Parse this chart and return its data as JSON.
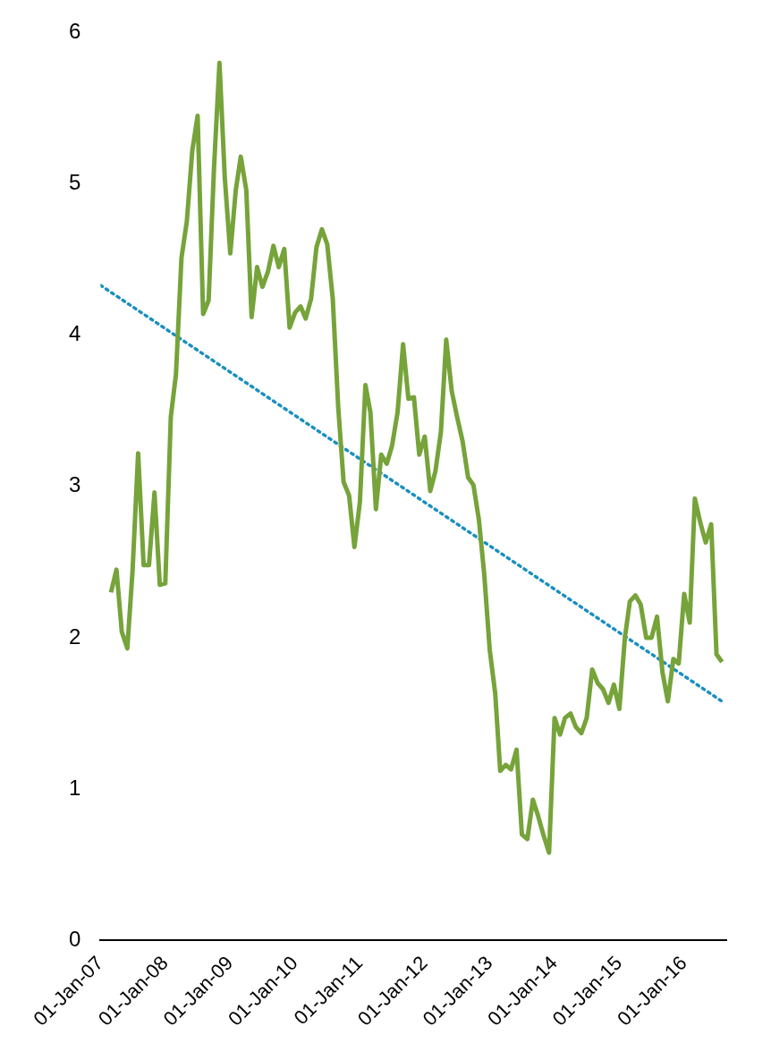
{
  "chart_data": {
    "type": "line",
    "legend": false,
    "grid": false,
    "marker": "none",
    "xlim": [
      "2007-01-01",
      "2016-08-25"
    ],
    "xticks": [
      {
        "value": "2007-01-01",
        "label": "01-Jan-07"
      },
      {
        "value": "2008-01-01",
        "label": "01-Jan-08"
      },
      {
        "value": "2009-01-01",
        "label": "01-Jan-09"
      },
      {
        "value": "2010-01-01",
        "label": "01-Jan-10"
      },
      {
        "value": "2011-01-01",
        "label": "01-Jan-11"
      },
      {
        "value": "2012-01-01",
        "label": "01-Jan-12"
      },
      {
        "value": "2013-01-01",
        "label": "01-Jan-13"
      },
      {
        "value": "2014-01-01",
        "label": "01-Jan-14"
      },
      {
        "value": "2015-01-01",
        "label": "01-Jan-15"
      },
      {
        "value": "2016-01-01",
        "label": "01-Jan-16"
      }
    ],
    "ylim": [
      0,
      6
    ],
    "yticks": [
      0,
      1,
      2,
      3,
      4,
      5,
      6
    ],
    "x": [
      "2007-03",
      "2007-04",
      "2007-05",
      "2007-06",
      "2007-07",
      "2007-08",
      "2007-09",
      "2007-10",
      "2007-11",
      "2007-12",
      "2008-01",
      "2008-02",
      "2008-03",
      "2008-04",
      "2008-05",
      "2008-06",
      "2008-07",
      "2008-08",
      "2008-09",
      "2008-10",
      "2008-11",
      "2008-12",
      "2009-01",
      "2009-02",
      "2009-03",
      "2009-04",
      "2009-05",
      "2009-06",
      "2009-07",
      "2009-08",
      "2009-09",
      "2009-10",
      "2009-11",
      "2009-12",
      "2010-01",
      "2010-02",
      "2010-03",
      "2010-04",
      "2010-05",
      "2010-06",
      "2010-07",
      "2010-08",
      "2010-09",
      "2010-10",
      "2010-11",
      "2010-12",
      "2011-01",
      "2011-02",
      "2011-03",
      "2011-04",
      "2011-05",
      "2011-06",
      "2011-07",
      "2011-08",
      "2011-09",
      "2011-10",
      "2011-11",
      "2011-12",
      "2012-01",
      "2012-02",
      "2012-03",
      "2012-04",
      "2012-05",
      "2012-06",
      "2012-07",
      "2012-08",
      "2012-09",
      "2012-10",
      "2012-11",
      "2012-12",
      "2013-01",
      "2013-02",
      "2013-03",
      "2013-04",
      "2013-05",
      "2013-06",
      "2013-07",
      "2013-08",
      "2013-09",
      "2013-10",
      "2013-11",
      "2013-12",
      "2014-01",
      "2014-02",
      "2014-03",
      "2014-04",
      "2014-05",
      "2014-06",
      "2014-07",
      "2014-08",
      "2014-09",
      "2014-10",
      "2014-11",
      "2014-12",
      "2015-01",
      "2015-02",
      "2015-03",
      "2015-04",
      "2015-05",
      "2015-06",
      "2015-07",
      "2015-08",
      "2015-09",
      "2015-10",
      "2015-11",
      "2015-12",
      "2016-01",
      "2016-02",
      "2016-03",
      "2016-04",
      "2016-05",
      "2016-06",
      "2016-07",
      "2016-08"
    ],
    "series": [
      {
        "color": "#76a33a",
        "line_style": "solid",
        "values": [
          2.3,
          2.45,
          2.04,
          1.93,
          2.45,
          3.22,
          2.48,
          2.48,
          2.96,
          2.35,
          2.36,
          3.46,
          3.74,
          4.51,
          4.75,
          5.22,
          5.45,
          4.14,
          4.23,
          5.1,
          5.8,
          5.04,
          4.54,
          4.96,
          5.18,
          4.96,
          4.12,
          4.45,
          4.32,
          4.42,
          4.59,
          4.45,
          4.57,
          4.05,
          4.15,
          4.19,
          4.11,
          4.24,
          4.58,
          4.7,
          4.6,
          4.24,
          3.52,
          3.03,
          2.94,
          2.6,
          2.9,
          3.67,
          3.49,
          2.85,
          3.21,
          3.15,
          3.27,
          3.49,
          3.94,
          3.58,
          3.59,
          3.21,
          3.33,
          2.97,
          3.1,
          3.36,
          3.97,
          3.63,
          3.46,
          3.3,
          3.06,
          3.01,
          2.78,
          2.42,
          1.92,
          1.63,
          1.12,
          1.16,
          1.13,
          1.26,
          0.7,
          0.67,
          0.93,
          0.82,
          0.69,
          0.58,
          1.47,
          1.36,
          1.47,
          1.5,
          1.41,
          1.37,
          1.47,
          1.79,
          1.7,
          1.66,
          1.57,
          1.69,
          1.53,
          2.0,
          2.24,
          2.28,
          2.22,
          2.0,
          2.0,
          2.14,
          1.77,
          1.58,
          1.86,
          1.83,
          2.29,
          2.1,
          2.92,
          2.76,
          2.63,
          2.75,
          1.89,
          1.84
        ]
      },
      {
        "type": "line",
        "color": "#1a8fc0",
        "line_style": "dotted",
        "x": [
          "2007-01",
          "2016-08"
        ],
        "values": [
          4.33,
          1.58
        ]
      }
    ]
  }
}
